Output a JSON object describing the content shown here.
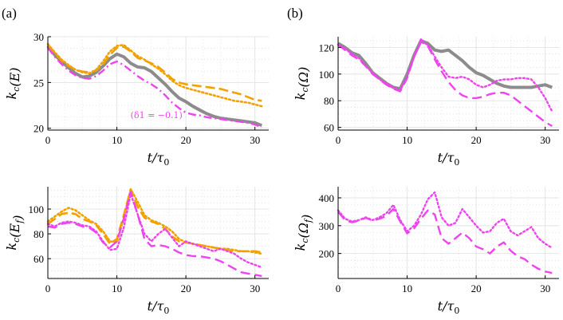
{
  "panel_tags": {
    "a": "(a)",
    "b": "(b)"
  },
  "colors": {
    "gray": "#8c8c8c",
    "orange": "#f2a200",
    "magenta": "#ee44ee"
  },
  "chart_data": [
    {
      "id": "p1",
      "type": "line",
      "xlabel": "t/τ0",
      "ylabel": "k_c(E)",
      "xlim": [
        0,
        32
      ],
      "ylim": [
        19.8,
        30
      ],
      "xticks": [
        0,
        10,
        20,
        30
      ],
      "yticks": [
        20,
        25,
        30
      ],
      "grid": true,
      "annotation": "(δ1 = −0.1)",
      "series": [
        {
          "style": "gray-solid",
          "x": [
            0,
            1,
            2,
            3,
            4,
            5,
            6,
            7,
            8,
            9,
            10,
            11,
            12,
            13,
            14,
            15,
            16,
            17,
            18,
            19,
            20,
            21,
            22,
            23,
            24,
            25,
            26,
            27,
            28,
            29,
            30,
            31
          ],
          "y": [
            29,
            28,
            27.3,
            26.6,
            26,
            25.6,
            25.7,
            26.1,
            26.8,
            27.6,
            28.1,
            27.8,
            27.1,
            26.7,
            26.6,
            26.2,
            25.5,
            24.8,
            24,
            23.3,
            22.9,
            22.4,
            22,
            21.6,
            21.3,
            21.1,
            21,
            20.9,
            20.8,
            20.7,
            20.6,
            20.3
          ]
        },
        {
          "style": "orange-dashed",
          "x": [
            0,
            1,
            2,
            3,
            4,
            5,
            6,
            7,
            8,
            9,
            10,
            11,
            12,
            13,
            14,
            15,
            16,
            17,
            18,
            19,
            20,
            21,
            22,
            23,
            24,
            25,
            26,
            27,
            28,
            29,
            30,
            31
          ],
          "y": [
            29.1,
            28.2,
            27.4,
            26.8,
            26.4,
            26.2,
            26.1,
            26.3,
            27,
            28,
            28.8,
            28.9,
            28.4,
            27.7,
            27.4,
            27.1,
            26.7,
            26.1,
            25.4,
            25,
            24.8,
            24.7,
            24.6,
            24.5,
            24.4,
            24.3,
            24.1,
            23.9,
            23.7,
            23.4,
            23.1,
            23
          ]
        },
        {
          "style": "orange-dotted",
          "x": [
            0,
            1,
            2,
            3,
            4,
            5,
            6,
            7,
            8,
            9,
            10,
            11,
            12,
            13,
            14,
            15,
            16,
            17,
            18,
            19,
            20,
            21,
            22,
            23,
            24,
            25,
            26,
            27,
            28,
            29,
            30,
            31
          ],
          "y": [
            29.2,
            28.3,
            27.5,
            26.9,
            26.4,
            26.1,
            26,
            26.4,
            27.3,
            28.4,
            29,
            29.1,
            28.5,
            27.9,
            27.5,
            27,
            26.5,
            25.9,
            25.2,
            24.7,
            24.4,
            24.2,
            24,
            23.8,
            23.6,
            23.4,
            23.2,
            23,
            22.9,
            22.8,
            22.6,
            22.4
          ]
        },
        {
          "style": "magenta-dashdot",
          "x": [
            0,
            1,
            2,
            3,
            4,
            5,
            6,
            7,
            8,
            9,
            10,
            11,
            12,
            13,
            14,
            15,
            16,
            17,
            18,
            19,
            20,
            21,
            22,
            23,
            24,
            25,
            26,
            27,
            28,
            29,
            30,
            31
          ],
          "y": [
            28.8,
            27.8,
            27,
            26.3,
            25.8,
            25.5,
            25.4,
            25.7,
            26.3,
            27,
            27.3,
            26.9,
            26.3,
            25.7,
            25.2,
            24.8,
            24.3,
            23.6,
            22.8,
            22.2,
            21.7,
            21.5,
            21.4,
            21.2,
            21.1,
            21,
            20.9,
            20.8,
            20.7,
            20.6,
            20.4,
            20.1
          ]
        }
      ]
    },
    {
      "id": "p2",
      "type": "line",
      "xlabel": "t/τ0",
      "ylabel": "k_c(Ω)",
      "xlim": [
        0,
        32
      ],
      "ylim": [
        58,
        128
      ],
      "xticks": [
        0,
        10,
        20,
        30
      ],
      "yticks": [
        60,
        80,
        100,
        120
      ],
      "grid": true,
      "series": [
        {
          "style": "gray-solid",
          "x": [
            0,
            1,
            2,
            3,
            4,
            5,
            6,
            7,
            8,
            9,
            10,
            11,
            12,
            13,
            14,
            15,
            16,
            17,
            18,
            19,
            20,
            21,
            22,
            23,
            24,
            25,
            26,
            27,
            28,
            29,
            30,
            31
          ],
          "y": [
            123,
            120,
            116,
            114,
            108,
            101,
            97,
            93,
            90,
            89,
            100,
            114,
            125,
            123,
            118,
            117,
            118,
            114,
            110,
            105,
            101,
            99,
            96,
            93,
            91,
            90,
            90,
            90,
            90,
            91,
            92,
            90
          ]
        },
        {
          "style": "magenta-dotted",
          "x": [
            0,
            1,
            2,
            3,
            4,
            5,
            6,
            7,
            8,
            9,
            10,
            11,
            12,
            13,
            14,
            15,
            16,
            17,
            18,
            19,
            20,
            21,
            22,
            23,
            24,
            25,
            26,
            27,
            28,
            29,
            30,
            31
          ],
          "y": [
            122,
            119,
            115,
            112,
            106,
            101,
            96,
            93,
            90,
            88,
            98,
            113,
            124,
            122,
            113,
            105,
            98,
            97,
            98,
            96,
            92,
            90,
            92,
            95,
            96,
            96,
            97,
            97,
            96,
            90,
            82,
            72
          ]
        },
        {
          "style": "magenta-dashed",
          "x": [
            0,
            1,
            2,
            3,
            4,
            5,
            6,
            7,
            8,
            9,
            10,
            11,
            12,
            13,
            14,
            15,
            16,
            17,
            18,
            19,
            20,
            21,
            22,
            23,
            24,
            25,
            26,
            27,
            28,
            29,
            30,
            31
          ],
          "y": [
            122,
            118,
            114,
            111,
            106,
            100,
            96,
            92,
            89,
            87,
            97,
            113,
            126,
            121,
            111,
            102,
            94,
            88,
            84,
            82,
            82,
            83,
            85,
            86,
            86,
            84,
            80,
            76,
            72,
            68,
            64,
            61
          ]
        }
      ]
    },
    {
      "id": "p3",
      "type": "line",
      "xlabel": "t/τ0",
      "ylabel": "k_c(E_f)",
      "xlim": [
        0,
        32
      ],
      "ylim": [
        44,
        118
      ],
      "xticks": [
        0,
        10,
        20,
        30
      ],
      "yticks": [
        60,
        80,
        100
      ],
      "grid": true,
      "series": [
        {
          "style": "orange-dashed",
          "x": [
            0,
            1,
            2,
            3,
            4,
            5,
            6,
            7,
            8,
            9,
            10,
            11,
            12,
            13,
            14,
            15,
            16,
            17,
            18,
            19,
            20,
            21,
            22,
            23,
            24,
            25,
            26,
            27,
            28,
            29,
            30,
            31
          ],
          "y": [
            88,
            92,
            96,
            97,
            96,
            92,
            90,
            87,
            80,
            72,
            76,
            95,
            116,
            102,
            93,
            90,
            88,
            84,
            78,
            74,
            73,
            72,
            71,
            70,
            69,
            68,
            67,
            66,
            66,
            66,
            66,
            65
          ]
        },
        {
          "style": "orange-dotted",
          "x": [
            0,
            1,
            2,
            3,
            4,
            5,
            6,
            7,
            8,
            9,
            10,
            11,
            12,
            13,
            14,
            15,
            16,
            17,
            18,
            19,
            20,
            21,
            22,
            23,
            24,
            25,
            26,
            27,
            28,
            29,
            30,
            31
          ],
          "y": [
            90,
            94,
            98,
            101,
            99,
            95,
            91,
            88,
            82,
            74,
            73,
            93,
            116,
            106,
            95,
            91,
            89,
            86,
            82,
            76,
            73,
            72,
            71,
            70,
            69,
            68,
            68,
            67,
            66,
            66,
            65,
            64
          ]
        },
        {
          "style": "magenta-dotted",
          "x": [
            0,
            1,
            2,
            3,
            4,
            5,
            6,
            7,
            8,
            9,
            10,
            11,
            12,
            13,
            14,
            15,
            16,
            17,
            18,
            19,
            20,
            21,
            22,
            23,
            24,
            25,
            26,
            27,
            28,
            29,
            30,
            31
          ],
          "y": [
            88,
            86,
            89,
            90,
            89,
            87,
            86,
            82,
            74,
            67,
            68,
            85,
            112,
            96,
            80,
            74,
            80,
            84,
            77,
            70,
            74,
            72,
            70,
            68,
            66,
            68,
            66,
            64,
            60,
            57,
            55,
            53
          ]
        },
        {
          "style": "magenta-dashed",
          "x": [
            0,
            1,
            2,
            3,
            4,
            5,
            6,
            7,
            8,
            9,
            10,
            11,
            12,
            13,
            14,
            15,
            16,
            17,
            18,
            19,
            20,
            21,
            22,
            23,
            24,
            25,
            26,
            27,
            28,
            29,
            30,
            31
          ],
          "y": [
            86,
            85,
            88,
            89,
            88,
            86,
            85,
            81,
            73,
            69,
            74,
            92,
            114,
            96,
            76,
            70,
            71,
            70,
            68,
            65,
            63,
            62,
            62,
            61,
            60,
            58,
            55,
            52,
            49,
            48,
            47,
            46
          ]
        }
      ]
    },
    {
      "id": "p4",
      "type": "line",
      "xlabel": "t/τ0",
      "ylabel": "k_c(Ω_f)",
      "xlim": [
        0,
        32
      ],
      "ylim": [
        110,
        440
      ],
      "xticks": [
        0,
        10,
        20,
        30
      ],
      "yticks": [
        200,
        300,
        400
      ],
      "grid": true,
      "series": [
        {
          "style": "magenta-dotted",
          "x": [
            0,
            1,
            2,
            3,
            4,
            5,
            6,
            7,
            8,
            9,
            10,
            11,
            12,
            13,
            14,
            15,
            16,
            17,
            18,
            19,
            20,
            21,
            22,
            23,
            24,
            25,
            26,
            27,
            28,
            29,
            30,
            31
          ],
          "y": [
            355,
            325,
            315,
            320,
            330,
            320,
            330,
            345,
            375,
            320,
            280,
            300,
            340,
            395,
            420,
            330,
            300,
            310,
            360,
            330,
            300,
            275,
            280,
            310,
            325,
            280,
            265,
            280,
            295,
            255,
            235,
            220
          ]
        },
        {
          "style": "magenta-dashed",
          "x": [
            0,
            1,
            2,
            3,
            4,
            5,
            6,
            7,
            8,
            9,
            10,
            11,
            12,
            13,
            14,
            15,
            16,
            17,
            18,
            19,
            20,
            21,
            22,
            23,
            24,
            25,
            26,
            27,
            28,
            29,
            30,
            31
          ],
          "y": [
            350,
            320,
            312,
            318,
            328,
            318,
            325,
            335,
            360,
            315,
            272,
            290,
            325,
            355,
            340,
            255,
            235,
            255,
            275,
            255,
            225,
            215,
            200,
            225,
            240,
            210,
            190,
            180,
            160,
            145,
            135,
            130
          ]
        }
      ]
    }
  ]
}
